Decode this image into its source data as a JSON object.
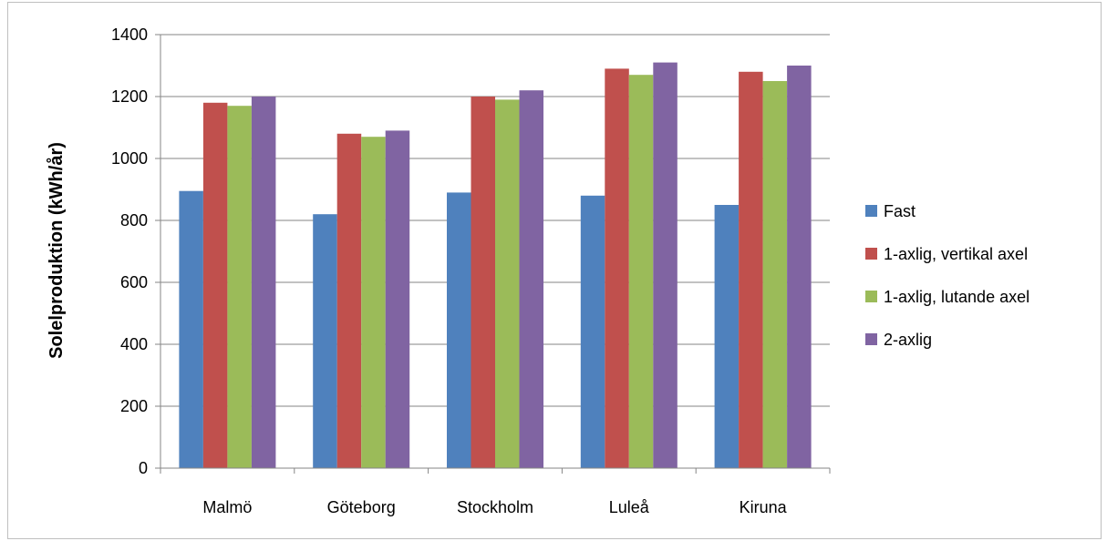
{
  "chart_data": {
    "type": "bar",
    "title": "",
    "xlabel": "",
    "ylabel": "Solelproduktion (kWh/år)",
    "ylim": [
      0,
      1400
    ],
    "yticks": [
      0,
      200,
      400,
      600,
      800,
      1000,
      1200,
      1400
    ],
    "grid": true,
    "legend_position": "right",
    "categories": [
      "Malmö",
      "Göteborg",
      "Stockholm",
      "Luleå",
      "Kiruna"
    ],
    "series": [
      {
        "name": "Fast",
        "color": "#4f81bd",
        "values": [
          895,
          820,
          890,
          880,
          850
        ]
      },
      {
        "name": "1-axlig, vertikal axel",
        "color": "#c0504d",
        "values": [
          1180,
          1080,
          1200,
          1290,
          1280
        ]
      },
      {
        "name": "1-axlig, lutande axel",
        "color": "#9bbb59",
        "values": [
          1170,
          1070,
          1190,
          1270,
          1250
        ]
      },
      {
        "name": "2-axlig",
        "color": "#8064a2",
        "values": [
          1200,
          1090,
          1220,
          1310,
          1300
        ]
      }
    ]
  }
}
